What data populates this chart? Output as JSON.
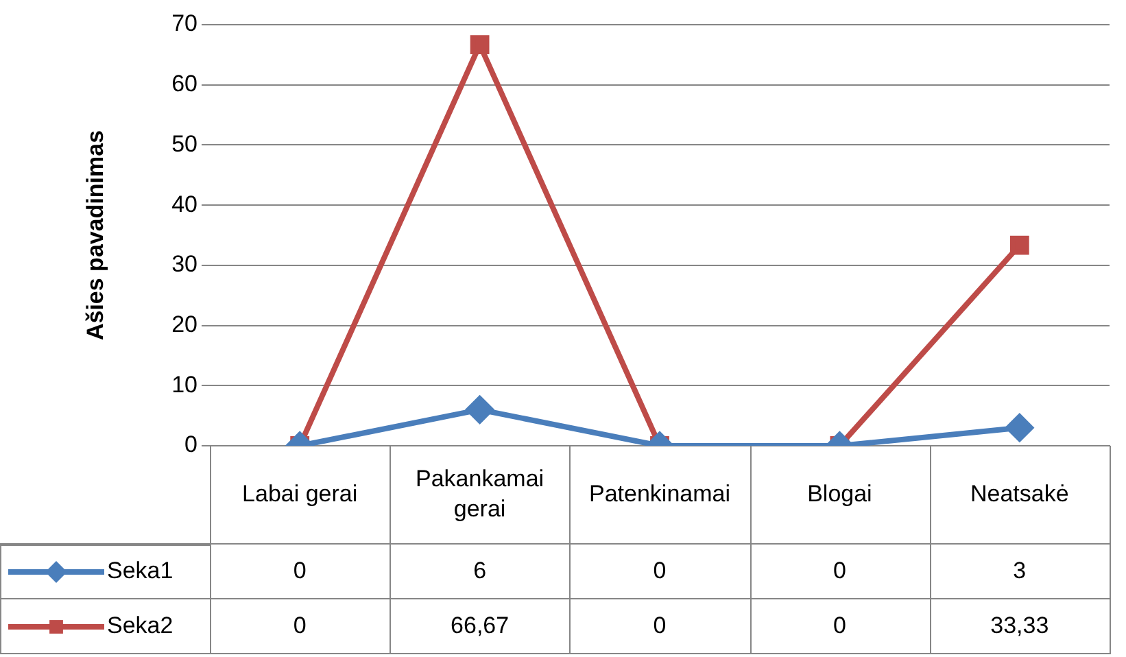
{
  "chart_data": {
    "type": "line",
    "ylabel": "Ašies pavadinimas",
    "categories": [
      "Labai gerai",
      "Pakankamai gerai",
      "Patenkinamai",
      "Blogai",
      "Neatsakė"
    ],
    "series": [
      {
        "name": "Seka1",
        "color": "#4a7ebb",
        "marker": "diamond",
        "values": [
          0,
          6,
          0,
          0,
          3
        ],
        "value_labels": [
          "0",
          "6",
          "0",
          "0",
          "3"
        ]
      },
      {
        "name": "Seka2",
        "color": "#be4b48",
        "marker": "square",
        "values": [
          0,
          66.67,
          0,
          0,
          33.33
        ],
        "value_labels": [
          "0",
          "66,67",
          "0",
          "0",
          "33,33"
        ]
      }
    ],
    "ylim": [
      0,
      70
    ],
    "yticks": [
      0,
      10,
      20,
      30,
      40,
      50,
      60,
      70
    ],
    "grid": "y",
    "legend": "bottom",
    "line_style": "solid"
  }
}
